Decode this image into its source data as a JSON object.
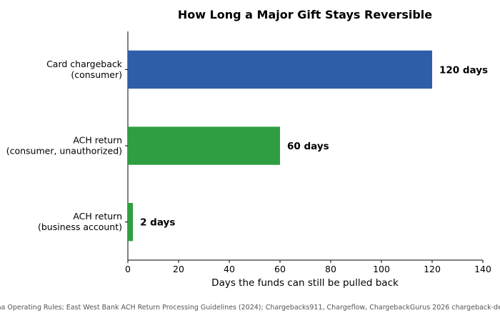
{
  "chart_data": {
    "type": "bar",
    "orientation": "horizontal",
    "title": "How Long a Major Gift Stays Reversible",
    "xlabel": "Days the funds can still be pulled back",
    "ylabel": "",
    "xlim": [
      0,
      140
    ],
    "xticks": [
      0,
      20,
      40,
      60,
      80,
      100,
      120,
      140
    ],
    "grid": false,
    "categories": [
      [
        "Card chargeback",
        "(consumer)"
      ],
      [
        "ACH return",
        "(consumer, unauthorized)"
      ],
      [
        "ACH return",
        "(business account)"
      ]
    ],
    "values": [
      120,
      60,
      2
    ],
    "data_labels": [
      "120 days",
      "60 days",
      "2 days"
    ],
    "colors": [
      "#2e5ea8",
      "#2e9e41",
      "#2e9e41"
    ],
    "source": "Sources: Nacha Operating Rules; East West Bank ACH Return Processing Guidelines (2024); Chargebacks911, Chargeflow, ChargebackGurus 2026 chargeback-deadline guides"
  }
}
